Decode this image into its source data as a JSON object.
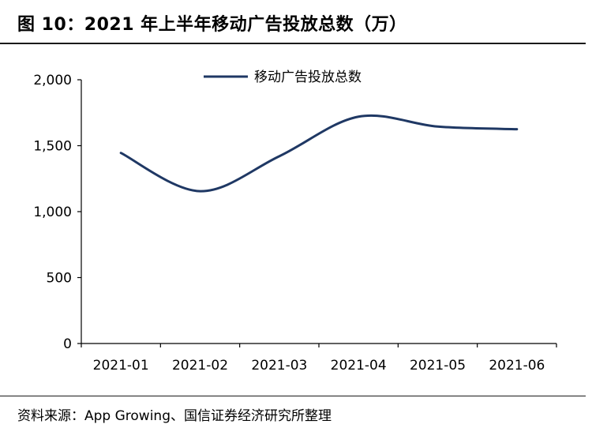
{
  "title": "图 10：2021 年上半年移动广告投放总数（万）",
  "source": "资料来源：App Growing、国信证券经济研究所整理",
  "chart_data": {
    "type": "line",
    "title": "2021 年上半年移动广告投放总数（万）",
    "categories": [
      "2021-01",
      "2021-02",
      "2021-03",
      "2021-04",
      "2021-05",
      "2021-06"
    ],
    "series": [
      {
        "name": "移动广告投放总数",
        "values": [
          1445,
          1155,
          1420,
          1720,
          1645,
          1625
        ],
        "color": "#1f3864"
      }
    ],
    "yticks": [
      "0",
      "500",
      "1,000",
      "1,500",
      "2,000"
    ],
    "ylim": [
      0,
      2000
    ],
    "xlabel": "",
    "ylabel": "",
    "legend": "top-center",
    "grid": false
  }
}
